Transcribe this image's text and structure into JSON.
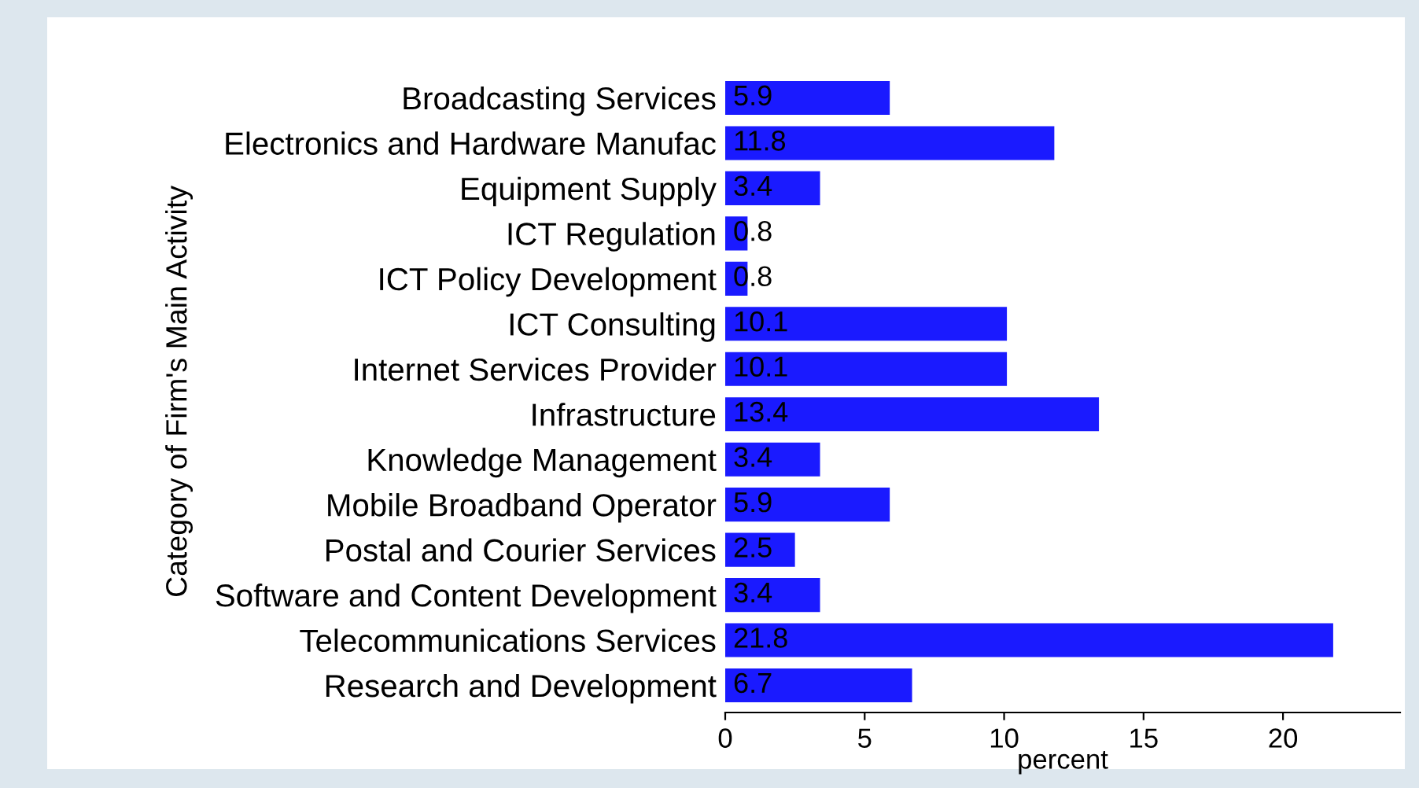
{
  "chart_data": {
    "type": "bar",
    "orientation": "horizontal",
    "ylabel": "Category of Firm's Main Activity",
    "xlabel": "percent",
    "categories": [
      "Broadcasting Services",
      "Electronics and Hardware Manufac",
      "Equipment Supply",
      "ICT Regulation",
      "ICT Policy Development",
      "ICT Consulting",
      "Internet Services Provider",
      "Infrastructure",
      "Knowledge Management",
      "Mobile Broadband Operator",
      "Postal and Courier Services",
      "Software and Content Development",
      "Telecommunications Services",
      "Research and Development"
    ],
    "values": [
      5.9,
      11.8,
      3.4,
      0.8,
      0.8,
      10.1,
      10.1,
      13.4,
      3.4,
      5.9,
      2.5,
      3.4,
      21.8,
      6.7
    ],
    "color": "#1a1aff",
    "data_labels": true,
    "xlim": [
      0,
      24.2
    ],
    "xticks": [
      0,
      5,
      10,
      15,
      20
    ],
    "grid": false,
    "legend": false
  }
}
